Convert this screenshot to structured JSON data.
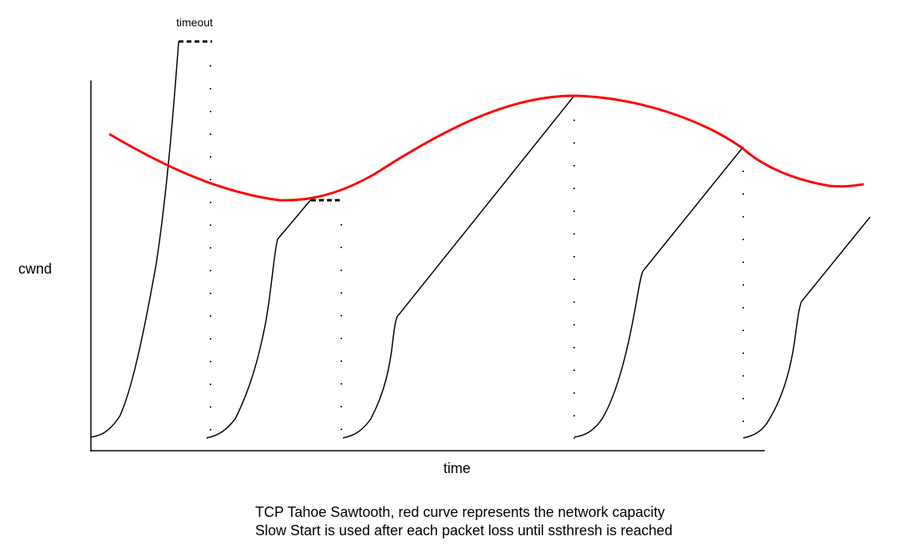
{
  "diagram": {
    "title_line1": "TCP Tahoe Sawtooth, red curve represents the network capacity",
    "title_line2": "Slow Start is used after each packet loss until ssthresh is reached",
    "y_axis_label": "cwnd",
    "x_axis_label": "time",
    "annotation_timeout": "timeout",
    "colors": {
      "capacity_curve": "#ff0000",
      "cwnd_curve": "#000000"
    }
  }
}
